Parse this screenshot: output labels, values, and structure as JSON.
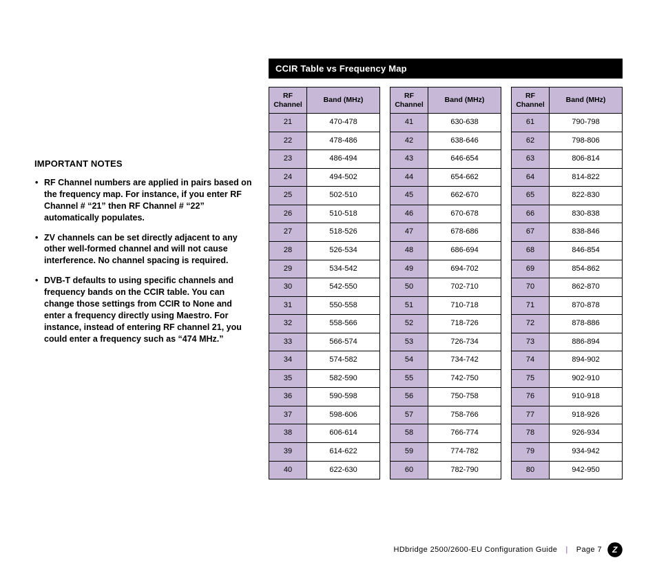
{
  "notes": {
    "heading": "IMPORTANT NOTES",
    "items": [
      "RF Channel numbers are applied in pairs based on the frequency map. For instance, if you enter RF Channel # “21” then RF Channel # “22” automatically populates.",
      "ZV channels can be set directly adjacent to any other well-formed channel and will not cause interference. No channel spacing is required.",
      "DVB-T defaults to using specific channels and frequency bands on the CCIR table. You can change those settings from CCIR to None and enter a frequency directly using Maestro. For instance, instead of entering RF channel 21, you could enter a frequency such as “474 MHz.”"
    ]
  },
  "tableSection": {
    "title": "CCIR Table vs Frequency Map",
    "headers": {
      "channel": "RF Channel",
      "band": "Band (MHz)"
    },
    "colors": {
      "header_bg": "#c8b8d8",
      "channel_cell_bg": "#c8b8d8",
      "band_cell_bg": "#ffffff",
      "border": "#000000",
      "title_bar_bg": "#000000",
      "title_bar_fg": "#ffffff"
    },
    "columns": [
      [
        {
          "ch": "21",
          "band": "470-478"
        },
        {
          "ch": "22",
          "band": "478-486"
        },
        {
          "ch": "23",
          "band": "486-494"
        },
        {
          "ch": "24",
          "band": "494-502"
        },
        {
          "ch": "25",
          "band": "502-510"
        },
        {
          "ch": "26",
          "band": "510-518"
        },
        {
          "ch": "27",
          "band": "518-526"
        },
        {
          "ch": "28",
          "band": "526-534"
        },
        {
          "ch": "29",
          "band": "534-542"
        },
        {
          "ch": "30",
          "band": "542-550"
        },
        {
          "ch": "31",
          "band": "550-558"
        },
        {
          "ch": "32",
          "band": "558-566"
        },
        {
          "ch": "33",
          "band": "566-574"
        },
        {
          "ch": "34",
          "band": "574-582"
        },
        {
          "ch": "35",
          "band": "582-590"
        },
        {
          "ch": "36",
          "band": "590-598"
        },
        {
          "ch": "37",
          "band": "598-606"
        },
        {
          "ch": "38",
          "band": "606-614"
        },
        {
          "ch": "39",
          "band": "614-622"
        },
        {
          "ch": "40",
          "band": "622-630"
        }
      ],
      [
        {
          "ch": "41",
          "band": "630-638"
        },
        {
          "ch": "42",
          "band": "638-646"
        },
        {
          "ch": "43",
          "band": "646-654"
        },
        {
          "ch": "44",
          "band": "654-662"
        },
        {
          "ch": "45",
          "band": "662-670"
        },
        {
          "ch": "46",
          "band": "670-678"
        },
        {
          "ch": "47",
          "band": "678-686"
        },
        {
          "ch": "48",
          "band": "686-694"
        },
        {
          "ch": "49",
          "band": "694-702"
        },
        {
          "ch": "50",
          "band": "702-710"
        },
        {
          "ch": "51",
          "band": "710-718"
        },
        {
          "ch": "52",
          "band": "718-726"
        },
        {
          "ch": "53",
          "band": "726-734"
        },
        {
          "ch": "54",
          "band": "734-742"
        },
        {
          "ch": "55",
          "band": "742-750"
        },
        {
          "ch": "56",
          "band": "750-758"
        },
        {
          "ch": "57",
          "band": "758-766"
        },
        {
          "ch": "58",
          "band": "766-774"
        },
        {
          "ch": "59",
          "band": "774-782"
        },
        {
          "ch": "60",
          "band": "782-790"
        }
      ],
      [
        {
          "ch": "61",
          "band": "790-798"
        },
        {
          "ch": "62",
          "band": "798-806"
        },
        {
          "ch": "63",
          "band": "806-814"
        },
        {
          "ch": "64",
          "band": "814-822"
        },
        {
          "ch": "65",
          "band": "822-830"
        },
        {
          "ch": "66",
          "band": "830-838"
        },
        {
          "ch": "67",
          "band": "838-846"
        },
        {
          "ch": "68",
          "band": "846-854"
        },
        {
          "ch": "69",
          "band": "854-862"
        },
        {
          "ch": "70",
          "band": "862-870"
        },
        {
          "ch": "71",
          "band": "870-878"
        },
        {
          "ch": "72",
          "band": "878-886"
        },
        {
          "ch": "73",
          "band": "886-894"
        },
        {
          "ch": "74",
          "band": "894-902"
        },
        {
          "ch": "75",
          "band": "902-910"
        },
        {
          "ch": "76",
          "band": "910-918"
        },
        {
          "ch": "77",
          "band": "918-926"
        },
        {
          "ch": "78",
          "band": "926-934"
        },
        {
          "ch": "79",
          "band": "934-942"
        },
        {
          "ch": "80",
          "band": "942-950"
        }
      ]
    ]
  },
  "footer": {
    "doc_title": "HDbridge 2500/2600-EU Configuration Guide",
    "page_label": "Page 7",
    "logo_text": "Zv"
  }
}
